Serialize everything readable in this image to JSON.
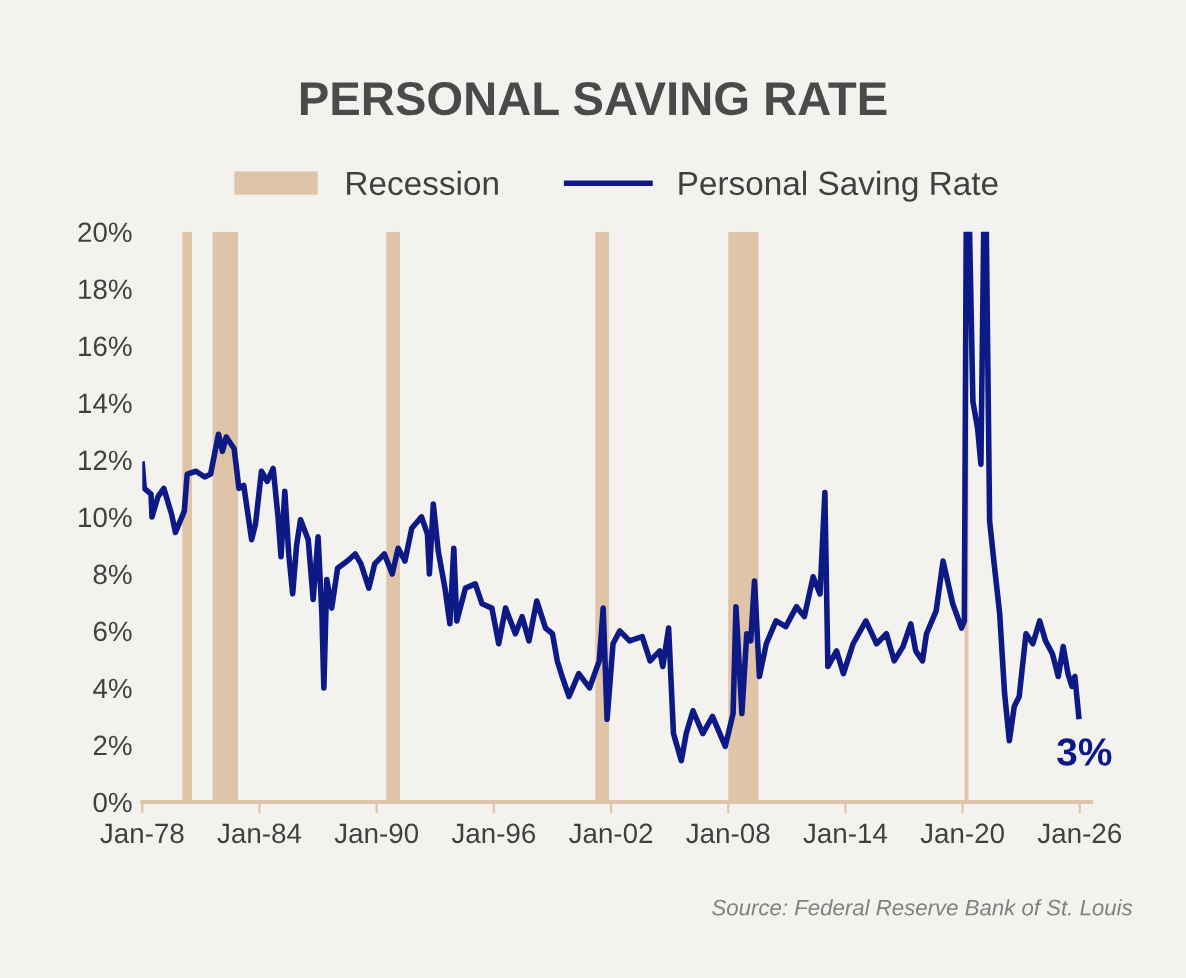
{
  "chart_data": {
    "type": "line",
    "title": "PERSONAL SAVING RATE",
    "x": [
      "1978-01-01",
      "1978-02-07",
      "1978-06-13",
      "1978-07-01",
      "1978-10-19",
      "1979-02-07",
      "1979-07-01",
      "1979-09-13",
      "1980-02-25",
      "1980-04-19",
      "1980-10-01",
      "1981-03-13",
      "1981-07-01",
      "1981-11-25",
      "1982-02-07",
      "1982-04-19",
      "1982-09-13",
      "1982-12-13",
      "1983-03-13",
      "1983-08-07",
      "1983-10-19",
      "1984-02-07",
      "1984-05-25",
      "1984-09-13",
      "1984-12-13",
      "1985-02-07",
      "1985-04-19",
      "1985-07-01",
      "1985-09-13",
      "1985-11-25",
      "1986-02-07",
      "1986-07-01",
      "1986-10-01",
      "1987-01-01",
      "1987-03-13",
      "1987-04-19",
      "1987-06-13",
      "1987-09-13",
      "1988-01-01",
      "1988-07-01",
      "1988-11-25",
      "1989-03-13",
      "1989-08-07",
      "1989-11-25",
      "1990-05-25",
      "1990-10-19",
      "1991-02-07",
      "1991-06-13",
      "1991-10-19",
      "1992-04-19",
      "1992-08-07",
      "1992-09-13",
      "1992-11-25",
      "1993-02-25",
      "1993-07-01",
      "1993-10-01",
      "1993-12-13",
      "1994-02-07",
      "1994-07-19",
      "1995-01-19",
      "1995-05-25",
      "1995-11-25",
      "1996-04-01",
      "1996-08-07",
      "1997-02-07",
      "1997-06-13",
      "1997-10-19",
      "1998-03-13",
      "1998-08-25",
      "1999-01-01",
      "1999-04-01",
      "1999-07-01",
      "1999-11-07",
      "2000-05-07",
      "2000-11-25",
      "2001-05-25",
      "2001-08-07",
      "2001-10-19",
      "2002-02-07",
      "2002-06-13",
      "2002-12-13",
      "2003-08-07",
      "2004-01-01",
      "2004-07-01",
      "2004-08-25",
      "2004-12-13",
      "2005-03-13",
      "2005-08-07",
      "2005-11-07",
      "2006-03-13",
      "2006-09-13",
      "2007-03-13",
      "2007-11-07",
      "2008-04-01",
      "2008-05-25",
      "2008-09-13",
      "2008-12-13",
      "2009-02-25",
      "2009-05-07",
      "2009-08-07",
      "2009-12-13",
      "2010-06-13",
      "2010-12-13",
      "2011-07-01",
      "2011-11-25",
      "2012-05-07",
      "2012-09-13",
      "2012-12-13",
      "2013-02-07",
      "2013-07-19",
      "2013-11-25",
      "2014-05-25",
      "2015-01-19",
      "2015-08-07",
      "2016-02-07",
      "2016-07-01",
      "2016-12-13",
      "2017-05-07",
      "2017-08-07",
      "2017-12-13",
      "2018-02-25",
      "2018-08-25",
      "2019-01-01",
      "2019-07-01",
      "2019-12-13",
      "2020-02-03",
      "2020-03-09",
      "2020-04-01",
      "2020-05-11",
      "2020-07-12",
      "2020-10-08",
      "2020-12-09",
      "2021-01-30",
      "2021-02-07",
      "2021-03-20",
      "2021-05-21",
      "2021-08-14",
      "2021-11-25",
      "2022-02-25",
      "2022-05-25",
      "2022-08-25",
      "2022-11-25",
      "2023-04-01",
      "2023-08-07",
      "2023-12-13",
      "2024-04-01",
      "2024-08-07",
      "2024-11-25",
      "2025-02-25",
      "2025-05-25",
      "2025-08-07",
      "2025-10-01",
      "2025-12-13"
    ],
    "series": [
      {
        "name": "Personal Saving Rate",
        "color": "#0d1a85",
        "values": [
          11.85,
          11.0,
          10.8,
          10.0,
          10.7,
          11.0,
          10.1,
          9.45,
          10.2,
          11.5,
          11.6,
          11.4,
          11.5,
          12.9,
          12.3,
          12.8,
          12.4,
          11.0,
          11.1,
          9.2,
          9.75,
          11.6,
          11.25,
          11.7,
          10.0,
          8.6,
          10.9,
          8.7,
          7.3,
          9.0,
          9.9,
          9.2,
          7.1,
          9.3,
          6.6,
          4.0,
          7.8,
          6.8,
          8.2,
          8.45,
          8.7,
          8.35,
          7.5,
          8.35,
          8.7,
          8.0,
          8.9,
          8.45,
          9.6,
          10.0,
          9.4,
          8.0,
          10.45,
          8.8,
          7.5,
          6.25,
          8.9,
          6.35,
          7.5,
          7.65,
          6.95,
          6.8,
          5.55,
          6.8,
          5.9,
          6.5,
          5.65,
          7.05,
          6.1,
          5.9,
          4.95,
          4.4,
          3.7,
          4.5,
          4.0,
          4.95,
          6.8,
          2.9,
          5.55,
          6.0,
          5.65,
          5.8,
          4.95,
          5.3,
          4.75,
          6.1,
          2.4,
          1.45,
          2.4,
          3.2,
          2.4,
          3.0,
          1.95,
          3.1,
          6.85,
          3.1,
          5.9,
          5.65,
          7.75,
          4.4,
          5.55,
          6.35,
          6.15,
          6.85,
          6.5,
          7.9,
          7.3,
          10.85,
          4.75,
          5.3,
          4.5,
          5.55,
          6.35,
          5.55,
          5.9,
          4.95,
          5.45,
          6.25,
          5.3,
          4.95,
          5.9,
          6.7,
          8.45,
          6.95,
          6.1,
          6.35,
          20,
          null,
          20,
          14.05,
          13.1,
          11.85,
          20,
          null,
          20,
          9.85,
          8.35,
          6.6,
          3.8,
          2.15,
          3.35,
          3.7,
          5.9,
          5.55,
          6.35,
          5.65,
          5.2,
          4.4,
          5.45,
          4.5,
          4.05,
          4.4,
          3.0
        ]
      }
    ],
    "bands": [
      {
        "axis": "x",
        "from": "1980-01-19",
        "to": "1980-07-19",
        "label": "Recession",
        "color": "#dfc4a8"
      },
      {
        "axis": "x",
        "from": "1981-08-07",
        "to": "1982-11-25",
        "color": "#dfc4a8"
      },
      {
        "axis": "x",
        "from": "1990-07-01",
        "to": "1991-03-13",
        "color": "#dfc4a8"
      },
      {
        "axis": "x",
        "from": "2001-03-13",
        "to": "2001-11-25",
        "color": "#dfc4a8"
      },
      {
        "axis": "x",
        "from": "2008-01-01",
        "to": "2009-07-19",
        "color": "#dfc4a8"
      },
      {
        "axis": "x",
        "from": "2020-02-07",
        "to": "2020-04-19",
        "color": "#dfc4a8"
      }
    ],
    "xlim": [
      "1978-01-01",
      "2026-08-01"
    ],
    "xticks": [
      {
        "value": "1978-01-01",
        "label": "Jan-78"
      },
      {
        "value": "1984-01-01",
        "label": "Jan-84"
      },
      {
        "value": "1990-01-01",
        "label": "Jan-90"
      },
      {
        "value": "1996-01-01",
        "label": "Jan-96"
      },
      {
        "value": "2002-01-01",
        "label": "Jan-02"
      },
      {
        "value": "2008-01-01",
        "label": "Jan-08"
      },
      {
        "value": "2014-01-01",
        "label": "Jan-14"
      },
      {
        "value": "2020-01-01",
        "label": "Jan-20"
      },
      {
        "value": "2026-01-01",
        "label": "Jan-26"
      }
    ],
    "ylim": [
      0,
      20
    ],
    "yticks": [
      {
        "value": 0,
        "label": "0%"
      },
      {
        "value": 2,
        "label": "2%"
      },
      {
        "value": 4,
        "label": "4%"
      },
      {
        "value": 6,
        "label": "6%"
      },
      {
        "value": 8,
        "label": "8%"
      },
      {
        "value": 10,
        "label": "10%"
      },
      {
        "value": 12,
        "label": "12%"
      },
      {
        "value": 14,
        "label": "14%"
      },
      {
        "value": 16,
        "label": "16%"
      },
      {
        "value": 18,
        "label": "18%"
      },
      {
        "value": 20,
        "label": "20%"
      }
    ],
    "annotations": [
      {
        "text": "3%",
        "x": "2025-12-13",
        "y": 3.0
      },
      "Source: Federal Reserve Bank of St. Louis"
    ],
    "legend": "top",
    "grid": false,
    "marker": "none",
    "line_style": "solid"
  }
}
